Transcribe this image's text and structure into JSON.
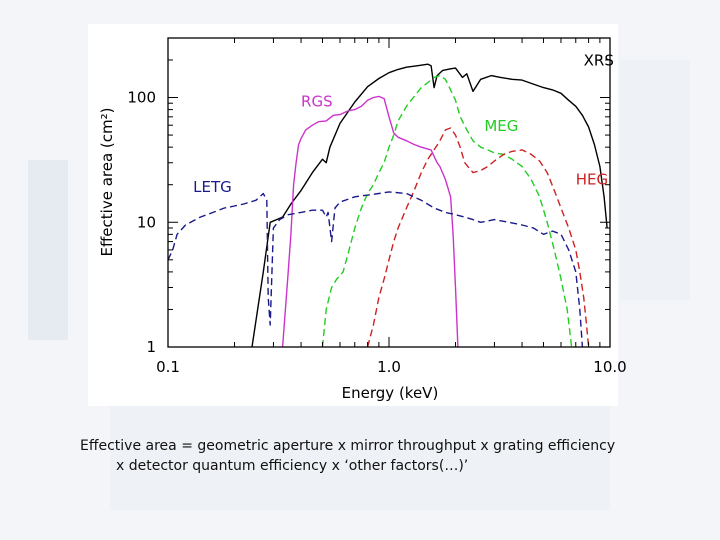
{
  "colors": {
    "XRS": "#000000",
    "RGS": "#cc33cc",
    "MEG": "#22cc22",
    "HEG": "#cc2222",
    "LETG": "#1a1a8c",
    "axis": "#000000",
    "page_background": "#f3f5f8"
  },
  "chart_data": {
    "type": "line",
    "title": "",
    "xlabel": "Energy (keV)",
    "ylabel": "Effective area (cm²)",
    "x_scale": "log",
    "y_scale": "log",
    "xlim": [
      0.1,
      10.0
    ],
    "ylim": [
      1,
      300
    ],
    "x_ticks": [
      {
        "value": 0.1,
        "label": "0.1"
      },
      {
        "value": 1.0,
        "label": "1.0"
      },
      {
        "value": 10.0,
        "label": "10.0"
      }
    ],
    "y_ticks": [
      {
        "value": 1,
        "label": "1"
      },
      {
        "value": 10,
        "label": "10"
      },
      {
        "value": 100,
        "label": "100"
      }
    ],
    "grid": false,
    "series": [
      {
        "name": "XRS",
        "color": "#000000",
        "dash": "solid",
        "label_pos": [
          7.6,
          180
        ],
        "points": [
          [
            0.24,
            1
          ],
          [
            0.27,
            4
          ],
          [
            0.29,
            10
          ],
          [
            0.33,
            11
          ],
          [
            0.36,
            14
          ],
          [
            0.4,
            18
          ],
          [
            0.45,
            25
          ],
          [
            0.5,
            32
          ],
          [
            0.52,
            30
          ],
          [
            0.54,
            40
          ],
          [
            0.6,
            62
          ],
          [
            0.7,
            92
          ],
          [
            0.8,
            122
          ],
          [
            0.9,
            142
          ],
          [
            1.0,
            158
          ],
          [
            1.1,
            168
          ],
          [
            1.2,
            175
          ],
          [
            1.35,
            180
          ],
          [
            1.5,
            185
          ],
          [
            1.55,
            180
          ],
          [
            1.6,
            120
          ],
          [
            1.65,
            150
          ],
          [
            1.75,
            165
          ],
          [
            1.9,
            170
          ],
          [
            2.0,
            172
          ],
          [
            2.15,
            145
          ],
          [
            2.25,
            155
          ],
          [
            2.4,
            112
          ],
          [
            2.6,
            140
          ],
          [
            2.9,
            150
          ],
          [
            3.2,
            145
          ],
          [
            3.6,
            140
          ],
          [
            4.0,
            138
          ],
          [
            4.5,
            128
          ],
          [
            5.0,
            120
          ],
          [
            5.5,
            115
          ],
          [
            6.0,
            108
          ],
          [
            6.5,
            95
          ],
          [
            7.0,
            85
          ],
          [
            7.5,
            72
          ],
          [
            8.0,
            58
          ],
          [
            8.5,
            42
          ],
          [
            9.0,
            28
          ],
          [
            9.4,
            16
          ],
          [
            9.7,
            9
          ]
        ]
      },
      {
        "name": "RGS",
        "color": "#cc33cc",
        "dash": "solid",
        "label_pos": [
          0.4,
          85
        ],
        "points": [
          [
            0.33,
            1
          ],
          [
            0.35,
            4
          ],
          [
            0.36,
            8
          ],
          [
            0.37,
            20
          ],
          [
            0.38,
            30
          ],
          [
            0.39,
            42
          ],
          [
            0.4,
            47
          ],
          [
            0.42,
            55
          ],
          [
            0.45,
            60
          ],
          [
            0.48,
            64
          ],
          [
            0.52,
            65
          ],
          [
            0.56,
            72
          ],
          [
            0.6,
            73
          ],
          [
            0.65,
            78
          ],
          [
            0.7,
            80
          ],
          [
            0.75,
            85
          ],
          [
            0.8,
            95
          ],
          [
            0.85,
            100
          ],
          [
            0.9,
            102
          ],
          [
            0.95,
            98
          ],
          [
            1.0,
            70
          ],
          [
            1.05,
            52
          ],
          [
            1.1,
            48
          ],
          [
            1.2,
            45
          ],
          [
            1.3,
            42
          ],
          [
            1.4,
            40
          ],
          [
            1.55,
            38
          ],
          [
            1.65,
            30
          ],
          [
            1.7,
            28
          ],
          [
            1.8,
            22
          ],
          [
            1.9,
            16
          ],
          [
            1.95,
            8
          ],
          [
            2.0,
            3
          ],
          [
            2.05,
            1
          ]
        ]
      },
      {
        "name": "MEG",
        "color": "#22cc22",
        "dash": "dashed",
        "label_pos": [
          2.7,
          54
        ],
        "points": [
          [
            0.5,
            1
          ],
          [
            0.52,
            2
          ],
          [
            0.55,
            3
          ],
          [
            0.58,
            3.5
          ],
          [
            0.62,
            4
          ],
          [
            0.66,
            6
          ],
          [
            0.7,
            9
          ],
          [
            0.75,
            13
          ],
          [
            0.8,
            17
          ],
          [
            0.85,
            20
          ],
          [
            0.9,
            25
          ],
          [
            0.95,
            30
          ],
          [
            1.0,
            40
          ],
          [
            1.05,
            50
          ],
          [
            1.1,
            65
          ],
          [
            1.2,
            85
          ],
          [
            1.3,
            102
          ],
          [
            1.4,
            120
          ],
          [
            1.5,
            132
          ],
          [
            1.6,
            145
          ],
          [
            1.7,
            150
          ],
          [
            1.8,
            140
          ],
          [
            1.9,
            115
          ],
          [
            2.0,
            95
          ],
          [
            2.1,
            70
          ],
          [
            2.25,
            55
          ],
          [
            2.4,
            45
          ],
          [
            2.6,
            40
          ],
          [
            2.8,
            38
          ],
          [
            3.0,
            36
          ],
          [
            3.3,
            35
          ],
          [
            3.6,
            32
          ],
          [
            4.0,
            28
          ],
          [
            4.4,
            22
          ],
          [
            4.8,
            16
          ],
          [
            5.2,
            10
          ],
          [
            5.6,
            6
          ],
          [
            6.0,
            3.5
          ],
          [
            6.4,
            2
          ],
          [
            6.7,
            1
          ]
        ]
      },
      {
        "name": "HEG",
        "color": "#cc2222",
        "dash": "dashed",
        "label_pos": [
          7.0,
          20
        ],
        "points": [
          [
            0.8,
            1
          ],
          [
            0.85,
            1.5
          ],
          [
            0.9,
            2.5
          ],
          [
            0.95,
            3.5
          ],
          [
            1.0,
            5
          ],
          [
            1.05,
            7
          ],
          [
            1.1,
            9
          ],
          [
            1.2,
            13
          ],
          [
            1.3,
            18
          ],
          [
            1.4,
            25
          ],
          [
            1.5,
            32
          ],
          [
            1.6,
            38
          ],
          [
            1.7,
            45
          ],
          [
            1.8,
            55
          ],
          [
            1.9,
            57
          ],
          [
            2.0,
            50
          ],
          [
            2.1,
            40
          ],
          [
            2.2,
            30
          ],
          [
            2.4,
            25
          ],
          [
            2.6,
            26
          ],
          [
            2.8,
            28
          ],
          [
            3.0,
            31
          ],
          [
            3.3,
            35
          ],
          [
            3.6,
            37
          ],
          [
            4.0,
            38
          ],
          [
            4.4,
            35
          ],
          [
            4.8,
            31
          ],
          [
            5.2,
            25
          ],
          [
            5.6,
            18
          ],
          [
            6.0,
            13
          ],
          [
            6.5,
            9
          ],
          [
            7.0,
            6
          ],
          [
            7.3,
            4
          ],
          [
            7.6,
            2.5
          ],
          [
            7.8,
            1.6
          ],
          [
            8.0,
            1
          ]
        ]
      },
      {
        "name": "LETG",
        "color": "#1a1a8c",
        "dash": "dashed",
        "label_pos": [
          0.13,
          17.5
        ],
        "points": [
          [
            0.1,
            5
          ],
          [
            0.105,
            6
          ],
          [
            0.11,
            8
          ],
          [
            0.12,
            9.5
          ],
          [
            0.14,
            11
          ],
          [
            0.16,
            12
          ],
          [
            0.18,
            13
          ],
          [
            0.2,
            13.5
          ],
          [
            0.22,
            14
          ],
          [
            0.25,
            15
          ],
          [
            0.27,
            17
          ],
          [
            0.28,
            15
          ],
          [
            0.284,
            2.5
          ],
          [
            0.29,
            1.5
          ],
          [
            0.3,
            9
          ],
          [
            0.32,
            10.5
          ],
          [
            0.35,
            11.5
          ],
          [
            0.4,
            12
          ],
          [
            0.45,
            12.5
          ],
          [
            0.5,
            12.5
          ],
          [
            0.52,
            11
          ],
          [
            0.53,
            12
          ],
          [
            0.55,
            7
          ],
          [
            0.57,
            13
          ],
          [
            0.6,
            14.5
          ],
          [
            0.7,
            16
          ],
          [
            0.8,
            16.5
          ],
          [
            0.9,
            17
          ],
          [
            1.0,
            17.5
          ],
          [
            1.2,
            17
          ],
          [
            1.4,
            15
          ],
          [
            1.6,
            13
          ],
          [
            1.8,
            12
          ],
          [
            2.0,
            11.5
          ],
          [
            2.2,
            11
          ],
          [
            2.4,
            10.5
          ],
          [
            2.6,
            10
          ],
          [
            3.0,
            10.5
          ],
          [
            3.5,
            10
          ],
          [
            4.0,
            9.5
          ],
          [
            4.5,
            9
          ],
          [
            5.0,
            8
          ],
          [
            5.5,
            8.5
          ],
          [
            6.0,
            8
          ],
          [
            6.5,
            6
          ],
          [
            7.0,
            4
          ],
          [
            7.3,
            2
          ],
          [
            7.5,
            1
          ]
        ]
      }
    ]
  },
  "caption": {
    "line1": "Effective area = geometric aperture x mirror throughput x grating efficiency",
    "line2": "x detector quantum efficiency x ‘other factors(…)’"
  }
}
